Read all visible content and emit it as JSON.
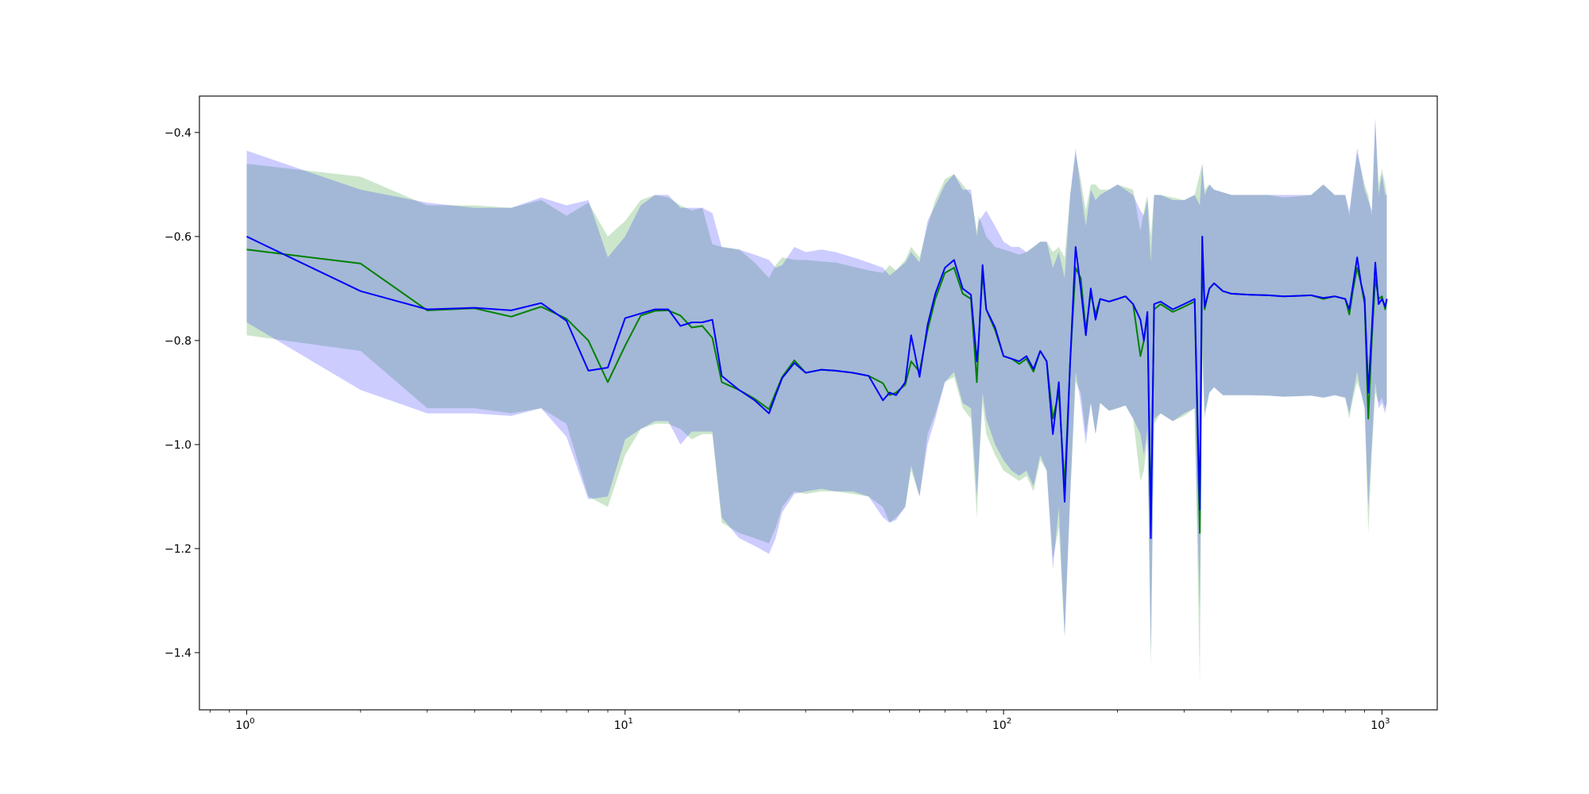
{
  "chart_data": {
    "type": "line",
    "title": "",
    "xlabel": "",
    "ylabel": "",
    "xscale": "log",
    "xlim": [
      0.75,
      1400
    ],
    "ylim": [
      -1.51,
      -0.33
    ],
    "grid": false,
    "legend": "none",
    "x_ticks": [
      {
        "value": 1,
        "base": "10",
        "exp": "0"
      },
      {
        "value": 10,
        "base": "10",
        "exp": "1"
      },
      {
        "value": 100,
        "base": "10",
        "exp": "2"
      },
      {
        "value": 1000,
        "base": "10",
        "exp": "3"
      }
    ],
    "y_ticks": [
      {
        "value": -0.4,
        "label": "−0.4"
      },
      {
        "value": -0.6,
        "label": "−0.6"
      },
      {
        "value": -0.8,
        "label": "−0.8"
      },
      {
        "value": -1.0,
        "label": "−1.0"
      },
      {
        "value": -1.2,
        "label": "−1.2"
      },
      {
        "value": -1.4,
        "label": "−1.4"
      }
    ],
    "series": [
      {
        "color": "#008000",
        "band_color": "#008000",
        "x": [
          1,
          2,
          3,
          4,
          5,
          6,
          7,
          8,
          9,
          10,
          11,
          12,
          13,
          14,
          15,
          16,
          17,
          18,
          20,
          22,
          24,
          25,
          26,
          28,
          30,
          33,
          36,
          40,
          44,
          48,
          50,
          52,
          55,
          57,
          60,
          63,
          66,
          70,
          74,
          78,
          82,
          85,
          86,
          88,
          90,
          95,
          100,
          105,
          110,
          115,
          120,
          125,
          130,
          135,
          140,
          145,
          150,
          155,
          160,
          165,
          170,
          175,
          180,
          190,
          200,
          210,
          220,
          230,
          235,
          240,
          245,
          250,
          260,
          280,
          300,
          320,
          330,
          335,
          340,
          350,
          360,
          380,
          400,
          450,
          500,
          550,
          600,
          650,
          700,
          750,
          800,
          820,
          840,
          860,
          880,
          900,
          920,
          940,
          960,
          980,
          1000,
          1020,
          1030
        ],
        "y": [
          -0.625,
          -0.652,
          -0.742,
          -0.738,
          -0.754,
          -0.735,
          -0.758,
          -0.8,
          -0.88,
          -0.81,
          -0.752,
          -0.743,
          -0.742,
          -0.752,
          -0.775,
          -0.772,
          -0.795,
          -0.88,
          -0.895,
          -0.912,
          -0.932,
          -0.9,
          -0.87,
          -0.838,
          -0.862,
          -0.856,
          -0.858,
          -0.862,
          -0.868,
          -0.882,
          -0.905,
          -0.9,
          -0.885,
          -0.84,
          -0.86,
          -0.78,
          -0.72,
          -0.67,
          -0.66,
          -0.71,
          -0.72,
          -0.88,
          -0.8,
          -0.67,
          -0.74,
          -0.78,
          -0.83,
          -0.835,
          -0.845,
          -0.835,
          -0.86,
          -0.82,
          -0.84,
          -0.95,
          -0.9,
          -1.08,
          -0.84,
          -0.66,
          -0.68,
          -0.78,
          -0.71,
          -0.75,
          -0.72,
          -0.725,
          -0.72,
          -0.715,
          -0.73,
          -0.83,
          -0.8,
          -0.75,
          -1.15,
          -0.74,
          -0.73,
          -0.745,
          -0.735,
          -0.725,
          -1.17,
          -0.64,
          -0.74,
          -0.7,
          -0.69,
          -0.705,
          -0.71,
          -0.712,
          -0.713,
          -0.715,
          -0.714,
          -0.713,
          -0.72,
          -0.715,
          -0.72,
          -0.75,
          -0.7,
          -0.66,
          -0.69,
          -0.73,
          -0.95,
          -0.8,
          -0.68,
          -0.72,
          -0.715,
          -0.74,
          -0.72
        ],
        "upper": [
          -0.46,
          -0.485,
          -0.54,
          -0.54,
          -0.545,
          -0.53,
          -0.56,
          -0.535,
          -0.6,
          -0.57,
          -0.53,
          -0.52,
          -0.525,
          -0.54,
          -0.55,
          -0.545,
          -0.615,
          -0.62,
          -0.625,
          -0.65,
          -0.68,
          -0.655,
          -0.64,
          -0.645,
          -0.645,
          -0.648,
          -0.65,
          -0.658,
          -0.665,
          -0.67,
          -0.655,
          -0.665,
          -0.645,
          -0.62,
          -0.64,
          -0.58,
          -0.53,
          -0.49,
          -0.48,
          -0.5,
          -0.52,
          -0.59,
          -0.56,
          -0.58,
          -0.6,
          -0.62,
          -0.625,
          -0.63,
          -0.635,
          -0.63,
          -0.62,
          -0.61,
          -0.61,
          -0.63,
          -0.62,
          -0.64,
          -0.52,
          -0.44,
          -0.49,
          -0.55,
          -0.5,
          -0.5,
          -0.51,
          -0.51,
          -0.5,
          -0.505,
          -0.51,
          -0.59,
          -0.55,
          -0.52,
          -0.6,
          -0.52,
          -0.52,
          -0.525,
          -0.53,
          -0.52,
          -0.48,
          -0.46,
          -0.51,
          -0.5,
          -0.51,
          -0.515,
          -0.52,
          -0.52,
          -0.52,
          -0.525,
          -0.523,
          -0.52,
          -0.5,
          -0.52,
          -0.52,
          -0.56,
          -0.5,
          -0.44,
          -0.47,
          -0.5,
          -0.52,
          -0.56,
          -0.38,
          -0.5,
          -0.47,
          -0.5,
          -0.52
        ],
        "lower": [
          -0.79,
          -0.82,
          -0.93,
          -0.93,
          -0.94,
          -0.93,
          -0.96,
          -1.1,
          -1.12,
          -1.02,
          -0.97,
          -0.96,
          -0.96,
          -0.97,
          -0.99,
          -0.98,
          -0.98,
          -1.15,
          -1.17,
          -1.18,
          -1.19,
          -1.16,
          -1.12,
          -1.09,
          -1.095,
          -1.09,
          -1.09,
          -1.095,
          -1.1,
          -1.12,
          -1.15,
          -1.14,
          -1.12,
          -1.05,
          -1.1,
          -0.98,
          -0.94,
          -0.88,
          -0.87,
          -0.93,
          -0.95,
          -1.14,
          -1.05,
          -0.92,
          -0.98,
          -1.02,
          -1.05,
          -1.06,
          -1.07,
          -1.06,
          -1.09,
          -1.03,
          -1.05,
          -1.22,
          -1.16,
          -1.37,
          -1.1,
          -0.88,
          -0.9,
          -0.98,
          -0.92,
          -0.98,
          -0.92,
          -0.935,
          -0.93,
          -0.925,
          -0.95,
          -1.07,
          -1.05,
          -0.99,
          -1.43,
          -0.96,
          -0.94,
          -0.955,
          -0.945,
          -0.93,
          -1.46,
          -0.84,
          -0.95,
          -0.9,
          -0.89,
          -0.905,
          -0.905,
          -0.905,
          -0.906,
          -0.908,
          -0.907,
          -0.906,
          -0.91,
          -0.905,
          -0.91,
          -0.95,
          -0.91,
          -0.88,
          -0.9,
          -0.93,
          -1.17,
          -1.02,
          -0.9,
          -0.92,
          -0.91,
          -0.93,
          -0.92
        ]
      },
      {
        "color": "#0000ff",
        "band_color": "#0000ff",
        "x": [
          1,
          2,
          3,
          4,
          5,
          6,
          7,
          8,
          9,
          10,
          11,
          12,
          13,
          14,
          15,
          16,
          17,
          18,
          20,
          22,
          24,
          25,
          26,
          28,
          30,
          33,
          36,
          40,
          44,
          48,
          50,
          52,
          55,
          57,
          60,
          63,
          66,
          70,
          74,
          78,
          82,
          85,
          86,
          88,
          90,
          95,
          100,
          105,
          110,
          115,
          120,
          125,
          130,
          135,
          140,
          145,
          150,
          155,
          160,
          165,
          170,
          175,
          180,
          190,
          200,
          210,
          220,
          230,
          235,
          240,
          245,
          250,
          260,
          280,
          300,
          320,
          330,
          335,
          340,
          350,
          360,
          380,
          400,
          450,
          500,
          550,
          600,
          650,
          700,
          750,
          800,
          820,
          840,
          860,
          880,
          900,
          920,
          940,
          960,
          980,
          1000,
          1020,
          1030
        ],
        "y": [
          -0.6,
          -0.705,
          -0.74,
          -0.737,
          -0.742,
          -0.728,
          -0.762,
          -0.858,
          -0.852,
          -0.757,
          -0.748,
          -0.74,
          -0.74,
          -0.772,
          -0.765,
          -0.765,
          -0.76,
          -0.868,
          -0.895,
          -0.915,
          -0.94,
          -0.905,
          -0.872,
          -0.843,
          -0.862,
          -0.856,
          -0.858,
          -0.862,
          -0.868,
          -0.915,
          -0.9,
          -0.905,
          -0.88,
          -0.79,
          -0.87,
          -0.77,
          -0.71,
          -0.66,
          -0.645,
          -0.7,
          -0.712,
          -0.84,
          -0.8,
          -0.655,
          -0.74,
          -0.775,
          -0.83,
          -0.835,
          -0.84,
          -0.83,
          -0.855,
          -0.82,
          -0.84,
          -0.98,
          -0.88,
          -1.11,
          -0.84,
          -0.62,
          -0.7,
          -0.79,
          -0.7,
          -0.76,
          -0.72,
          -0.725,
          -0.72,
          -0.715,
          -0.73,
          -0.76,
          -0.8,
          -0.745,
          -1.18,
          -0.73,
          -0.725,
          -0.74,
          -0.73,
          -0.72,
          -1.125,
          -0.6,
          -0.735,
          -0.7,
          -0.69,
          -0.705,
          -0.71,
          -0.712,
          -0.713,
          -0.715,
          -0.714,
          -0.713,
          -0.718,
          -0.715,
          -0.72,
          -0.74,
          -0.69,
          -0.64,
          -0.69,
          -0.72,
          -0.9,
          -0.78,
          -0.65,
          -0.73,
          -0.72,
          -0.735,
          -0.72
        ],
        "upper": [
          -0.435,
          -0.51,
          -0.535,
          -0.545,
          -0.545,
          -0.525,
          -0.54,
          -0.53,
          -0.64,
          -0.6,
          -0.54,
          -0.52,
          -0.52,
          -0.545,
          -0.545,
          -0.545,
          -0.555,
          -0.62,
          -0.625,
          -0.635,
          -0.645,
          -0.66,
          -0.655,
          -0.62,
          -0.63,
          -0.625,
          -0.63,
          -0.64,
          -0.65,
          -0.66,
          -0.675,
          -0.665,
          -0.65,
          -0.63,
          -0.65,
          -0.57,
          -0.54,
          -0.5,
          -0.48,
          -0.51,
          -0.51,
          -0.6,
          -0.57,
          -0.56,
          -0.55,
          -0.58,
          -0.61,
          -0.62,
          -0.62,
          -0.63,
          -0.62,
          -0.61,
          -0.61,
          -0.66,
          -0.63,
          -0.68,
          -0.52,
          -0.43,
          -0.51,
          -0.58,
          -0.51,
          -0.53,
          -0.52,
          -0.51,
          -0.5,
          -0.51,
          -0.52,
          -0.55,
          -0.56,
          -0.53,
          -0.65,
          -0.52,
          -0.52,
          -0.53,
          -0.53,
          -0.52,
          -0.54,
          -0.46,
          -0.52,
          -0.5,
          -0.51,
          -0.515,
          -0.52,
          -0.52,
          -0.52,
          -0.52,
          -0.52,
          -0.52,
          -0.5,
          -0.52,
          -0.52,
          -0.55,
          -0.49,
          -0.43,
          -0.47,
          -0.51,
          -0.53,
          -0.55,
          -0.37,
          -0.52,
          -0.48,
          -0.52,
          -0.52
        ],
        "lower": [
          -0.765,
          -0.895,
          -0.94,
          -0.94,
          -0.945,
          -0.93,
          -0.985,
          -1.105,
          -1.1,
          -0.99,
          -0.97,
          -0.955,
          -0.955,
          -1.0,
          -0.975,
          -0.975,
          -0.975,
          -1.14,
          -1.18,
          -1.195,
          -1.21,
          -1.18,
          -1.13,
          -1.095,
          -1.09,
          -1.085,
          -1.09,
          -1.09,
          -1.1,
          -1.14,
          -1.15,
          -1.145,
          -1.12,
          -1.04,
          -1.1,
          -1.0,
          -0.95,
          -0.88,
          -0.86,
          -0.92,
          -0.93,
          -1.1,
          -1.04,
          -0.9,
          -0.95,
          -1.0,
          -1.03,
          -1.05,
          -1.06,
          -1.05,
          -1.08,
          -1.02,
          -1.05,
          -1.24,
          -1.12,
          -1.37,
          -1.1,
          -0.86,
          -0.92,
          -1.0,
          -0.92,
          -0.98,
          -0.92,
          -0.935,
          -0.93,
          -0.925,
          -0.95,
          -0.98,
          -1.02,
          -0.97,
          -1.4,
          -0.95,
          -0.94,
          -0.955,
          -0.94,
          -0.93,
          -1.32,
          -0.8,
          -0.94,
          -0.9,
          -0.89,
          -0.905,
          -0.905,
          -0.905,
          -0.906,
          -0.908,
          -0.907,
          -0.906,
          -0.91,
          -0.905,
          -0.91,
          -0.94,
          -0.9,
          -0.86,
          -0.9,
          -0.93,
          -1.12,
          -1.0,
          -0.88,
          -0.93,
          -0.92,
          -0.94,
          -0.92
        ]
      }
    ]
  }
}
